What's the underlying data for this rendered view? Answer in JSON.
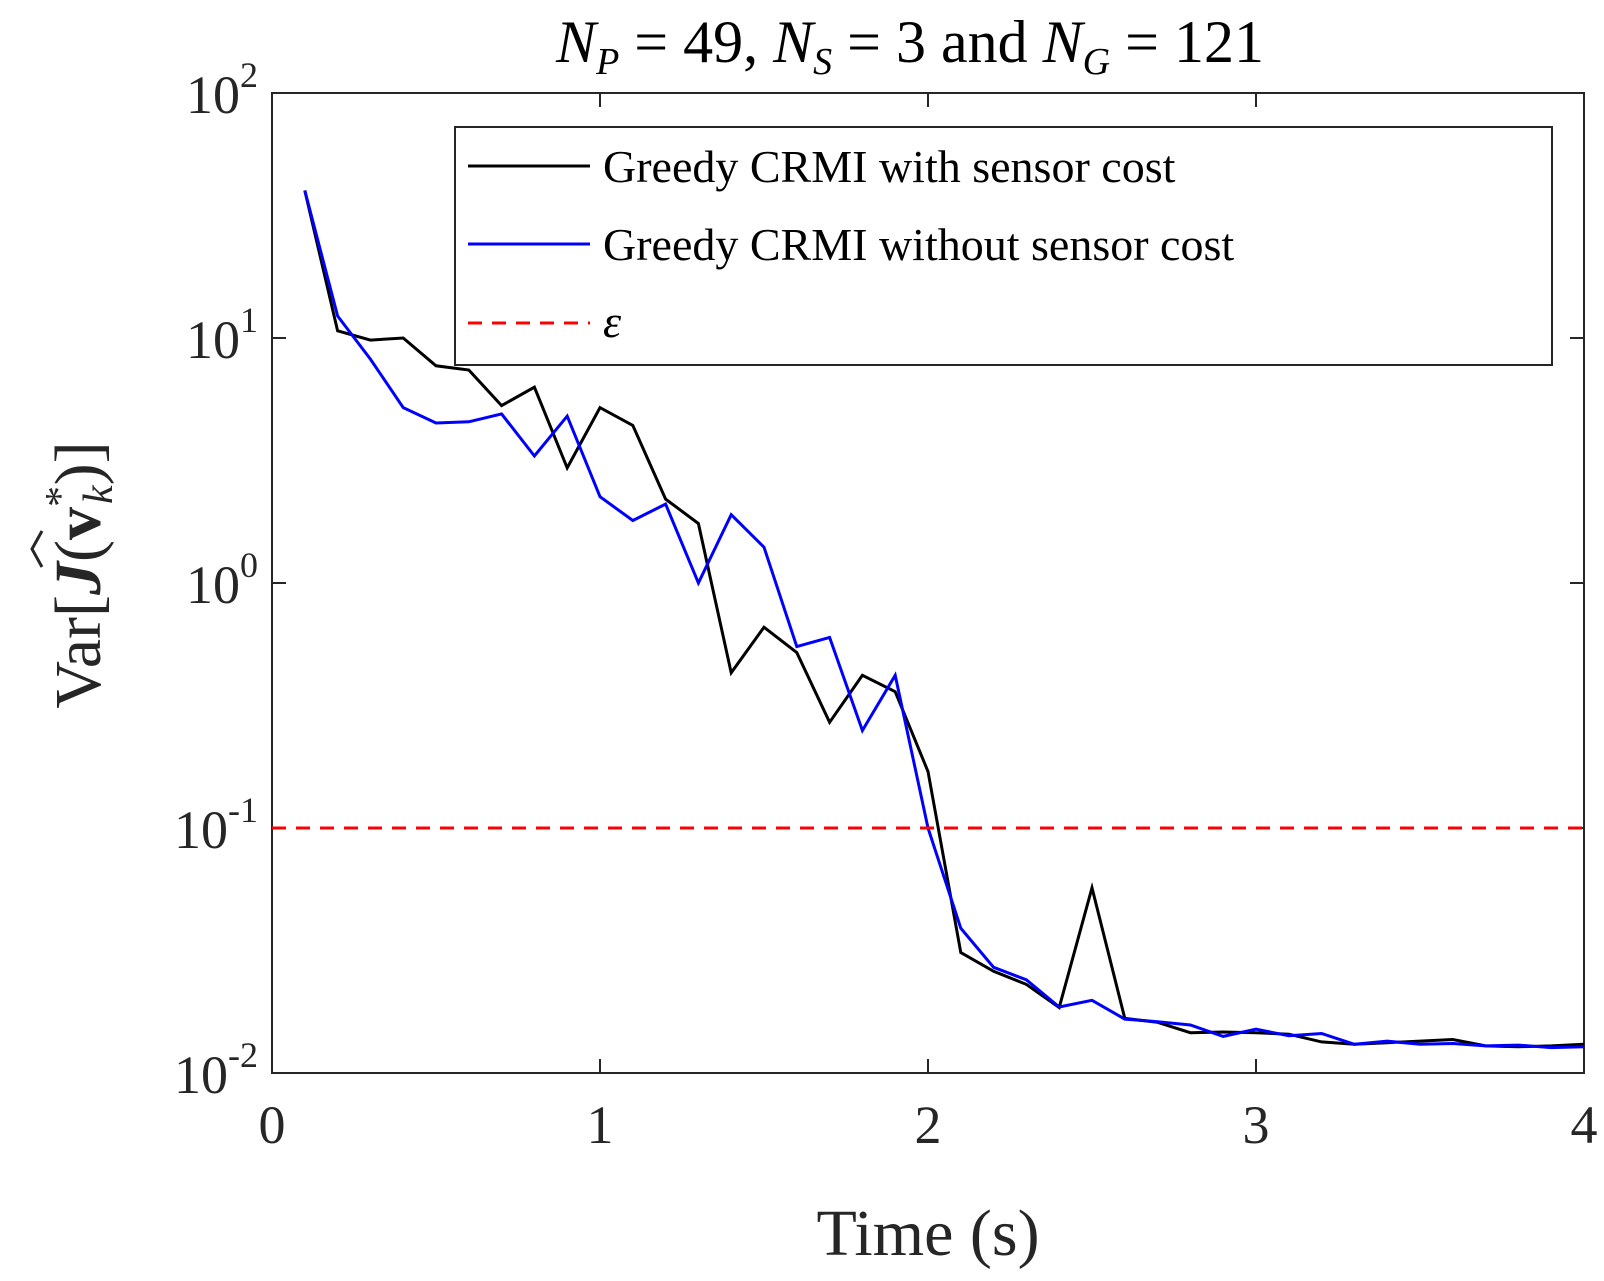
{
  "chart_data": {
    "type": "line",
    "title": "N_P = 49, N_S = 3 and N_G = 121",
    "title_parts": {
      "np_sym": "N",
      "np_sub": "P",
      "np_val": " = 49, ",
      "ns_sym": "N",
      "ns_sub": "S",
      "ns_val": " = 3 and ",
      "ng_sym": "N",
      "ng_sub": "G",
      "ng_val": " = 121"
    },
    "xlabel": "Time (s)",
    "ylabel": "Var[Ĵ(v*_k)]",
    "ylabel_parts": {
      "prefix": "Var[",
      "hat": "^",
      "fn": "J",
      "open": "(",
      "vec": "v",
      "sup": "*",
      "sub": "k",
      "close": ")]"
    },
    "xlim": [
      0,
      4
    ],
    "ylim": [
      0.01,
      100
    ],
    "yscale": "log",
    "x_ticks": [
      0,
      1,
      2,
      3,
      4
    ],
    "x_tick_labels": [
      "0",
      "1",
      "2",
      "3",
      "4"
    ],
    "y_ticks": [
      0.01,
      0.1,
      1,
      10,
      100
    ],
    "y_tick_labels": [
      {
        "base": "10",
        "exp": "-2"
      },
      {
        "base": "10",
        "exp": "-1"
      },
      {
        "base": "10",
        "exp": "0"
      },
      {
        "base": "10",
        "exp": "1"
      },
      {
        "base": "10",
        "exp": "2"
      }
    ],
    "grid": false,
    "legend_position": "top-right",
    "x": [
      0.1,
      0.2,
      0.3,
      0.4,
      0.5,
      0.6,
      0.7,
      0.8,
      0.9,
      1.0,
      1.1,
      1.2,
      1.3,
      1.4,
      1.5,
      1.6,
      1.7,
      1.8,
      1.9,
      2.0,
      2.1,
      2.2,
      2.3,
      2.4,
      2.5,
      2.6,
      2.7,
      2.8,
      2.9,
      3.0,
      3.1,
      3.2,
      3.3,
      3.4,
      3.5,
      3.6,
      3.7,
      3.8,
      3.9,
      4.0
    ],
    "series": [
      {
        "name": "Greedy CRMI with sensor cost",
        "color": "#000000",
        "style": "solid",
        "values": [
          40,
          10.7,
          9.8,
          10.0,
          7.7,
          7.4,
          5.3,
          6.3,
          2.95,
          5.2,
          4.4,
          2.2,
          1.75,
          0.43,
          0.66,
          0.52,
          0.27,
          0.42,
          0.36,
          0.17,
          0.031,
          0.026,
          0.023,
          0.0185,
          0.057,
          0.0167,
          0.0161,
          0.0146,
          0.0147,
          0.0146,
          0.0144,
          0.0134,
          0.0131,
          0.0133,
          0.0135,
          0.0137,
          0.0129,
          0.0128,
          0.0129,
          0.0131
        ]
      },
      {
        "name": "Greedy CRMI without sensor cost",
        "color": "#0000ff",
        "style": "solid",
        "values": [
          40,
          12.3,
          8.2,
          5.2,
          4.5,
          4.55,
          4.9,
          3.3,
          4.8,
          2.25,
          1.8,
          2.1,
          1.0,
          1.9,
          1.4,
          0.55,
          0.6,
          0.25,
          0.42,
          0.1,
          0.039,
          0.027,
          0.024,
          0.0186,
          0.0198,
          0.0166,
          0.0162,
          0.0157,
          0.0141,
          0.0151,
          0.0142,
          0.0145,
          0.0131,
          0.0135,
          0.0131,
          0.0132,
          0.0129,
          0.013,
          0.0127,
          0.0128
        ]
      },
      {
        "name": "ε",
        "color": "#ff0000",
        "style": "dashed",
        "constant": 0.1
      }
    ]
  }
}
